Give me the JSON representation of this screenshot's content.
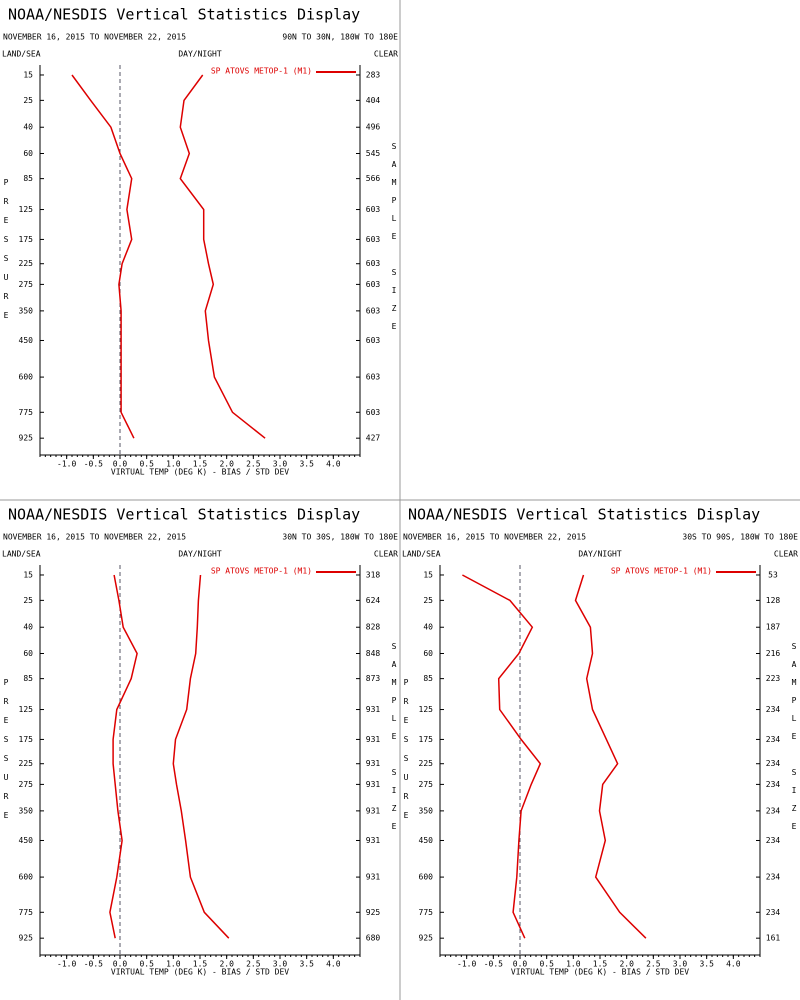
{
  "chart_data": [
    {
      "type": "line",
      "title": "NOAA/NESDIS Vertical Statistics Display",
      "subtitle": "NOVEMBER 16, 2015 TO NOVEMBER 22, 2015",
      "region": "90N TO 30N, 180W TO 180E",
      "land_sea": "LAND/SEA",
      "day_night": "DAY/NIGHT",
      "clear": "CLEAR",
      "legend": "SP ATOVS METOP-1 (M1)",
      "color": "#dd0000",
      "ylabel": "PRESSURE",
      "y2label": "SAMPLE SIZE",
      "xlabel": "VIRTUAL TEMP (DEG K) - BIAS / STD DEV",
      "y": [
        15,
        25,
        40,
        60,
        85,
        125,
        175,
        225,
        275,
        350,
        450,
        600,
        775,
        925
      ],
      "series": [
        {
          "values": [
            -0.9,
            -0.55,
            -0.17,
            0.0,
            0.22,
            0.13,
            0.22,
            0.04,
            -0.02,
            0.02,
            0.02,
            0.02,
            0.02,
            0.26
          ]
        },
        {
          "values": [
            1.55,
            1.2,
            1.13,
            1.3,
            1.13,
            1.57,
            1.57,
            1.66,
            1.75,
            1.6,
            1.66,
            1.77,
            2.11,
            2.72
          ]
        }
      ],
      "sample_sizes": [
        283,
        404,
        496,
        545,
        566,
        603,
        603,
        603,
        603,
        603,
        603,
        603,
        603,
        427
      ],
      "xlim": [
        -1.5,
        4.5
      ],
      "xticks": [
        {
          "value": -1.0,
          "label": "-1.0"
        },
        {
          "value": -0.5,
          "label": "-0.5"
        },
        {
          "value": 0.0,
          "label": "0.0"
        },
        {
          "value": 0.5,
          "label": "0.5"
        },
        {
          "value": 1.0,
          "label": "1.0"
        },
        {
          "value": 1.5,
          "label": "1.5"
        },
        {
          "value": 2.0,
          "label": "2.0"
        },
        {
          "value": 2.5,
          "label": "2.5"
        },
        {
          "value": 3.0,
          "label": "3.0"
        },
        {
          "value": 3.5,
          "label": "3.5"
        },
        {
          "value": 4.0,
          "label": "4.0"
        }
      ],
      "ylim": [
        12,
        1000
      ],
      "yscale": "power",
      "yexponent": 0.286,
      "yinverted": true,
      "yticks": [
        15,
        25,
        40,
        60,
        85,
        125,
        175,
        225,
        275,
        350,
        450,
        600,
        775,
        925
      ]
    },
    {
      "type": "line",
      "title": "NOAA/NESDIS Vertical Statistics Display",
      "subtitle": "NOVEMBER 16, 2015 TO NOVEMBER 22, 2015",
      "region": "30N TO 30S, 180W TO 180E",
      "land_sea": "LAND/SEA",
      "day_night": "DAY/NIGHT",
      "clear": "CLEAR",
      "legend": "SP ATOVS METOP-1 (M1)",
      "color": "#dd0000",
      "ylabel": "PRESSURE",
      "y2label": "SAMPLE SIZE",
      "xlabel": "VIRTUAL TEMP (DEG K) - BIAS / STD DEV",
      "y": [
        15,
        25,
        40,
        60,
        85,
        125,
        175,
        225,
        275,
        350,
        450,
        600,
        775,
        925
      ],
      "series": [
        {
          "values": [
            -0.11,
            -0.02,
            0.06,
            0.32,
            0.21,
            -0.06,
            -0.13,
            -0.13,
            -0.09,
            -0.04,
            0.04,
            -0.06,
            -0.19,
            -0.09
          ]
        },
        {
          "values": [
            1.51,
            1.47,
            1.45,
            1.42,
            1.32,
            1.25,
            1.04,
            1.0,
            1.06,
            1.15,
            1.23,
            1.32,
            1.58,
            2.04
          ]
        }
      ],
      "sample_sizes": [
        318,
        624,
        828,
        848,
        873,
        931,
        931,
        931,
        931,
        931,
        931,
        931,
        925,
        680
      ],
      "xlim": [
        -1.5,
        4.5
      ],
      "xticks": [
        {
          "value": -1.0,
          "label": "-1.0"
        },
        {
          "value": -0.5,
          "label": "-0.5"
        },
        {
          "value": 0.0,
          "label": "0.0"
        },
        {
          "value": 0.5,
          "label": "0.5"
        },
        {
          "value": 1.0,
          "label": "1.0"
        },
        {
          "value": 1.5,
          "label": "1.5"
        },
        {
          "value": 2.0,
          "label": "2.0"
        },
        {
          "value": 2.5,
          "label": "2.5"
        },
        {
          "value": 3.0,
          "label": "3.0"
        },
        {
          "value": 3.5,
          "label": "3.5"
        },
        {
          "value": 4.0,
          "label": "4.0"
        }
      ],
      "ylim": [
        12,
        1000
      ],
      "yscale": "power",
      "yexponent": 0.286,
      "yinverted": true,
      "yticks": [
        15,
        25,
        40,
        60,
        85,
        125,
        175,
        225,
        275,
        350,
        450,
        600,
        775,
        925
      ]
    },
    {
      "type": "line",
      "title": "NOAA/NESDIS Vertical Statistics Display",
      "subtitle": "NOVEMBER 16, 2015 TO NOVEMBER 22, 2015",
      "region": "30S TO 90S, 180W TO 180E",
      "land_sea": "LAND/SEA",
      "day_night": "DAY/NIGHT",
      "clear": "CLEAR",
      "legend": "SP ATOVS METOP-1 (M1)",
      "color": "#dd0000",
      "ylabel": "PRESSURE",
      "y2label": "SAMPLE SIZE",
      "xlabel": "VIRTUAL TEMP (DEG K) - BIAS / STD DEV",
      "y": [
        15,
        25,
        40,
        60,
        85,
        125,
        175,
        225,
        275,
        350,
        450,
        600,
        775,
        925
      ],
      "series": [
        {
          "values": [
            -1.08,
            -0.19,
            0.23,
            -0.02,
            -0.4,
            -0.38,
            0.02,
            0.38,
            0.21,
            0.02,
            -0.02,
            -0.06,
            -0.13,
            0.09
          ]
        },
        {
          "values": [
            1.19,
            1.04,
            1.32,
            1.36,
            1.25,
            1.36,
            1.62,
            1.83,
            1.55,
            1.49,
            1.6,
            1.42,
            1.87,
            2.36
          ]
        }
      ],
      "sample_sizes": [
        53,
        128,
        187,
        216,
        223,
        234,
        234,
        234,
        234,
        234,
        234,
        234,
        234,
        161
      ],
      "xlim": [
        -1.5,
        4.5
      ],
      "xticks": [
        {
          "value": -1.0,
          "label": "-1.0"
        },
        {
          "value": -0.5,
          "label": "-0.5"
        },
        {
          "value": 0.0,
          "label": "0.0"
        },
        {
          "value": 0.5,
          "label": "0.5"
        },
        {
          "value": 1.0,
          "label": "1.0"
        },
        {
          "value": 1.5,
          "label": "1.5"
        },
        {
          "value": 2.0,
          "label": "2.0"
        },
        {
          "value": 2.5,
          "label": "2.5"
        },
        {
          "value": 3.0,
          "label": "3.0"
        },
        {
          "value": 3.5,
          "label": "3.5"
        },
        {
          "value": 4.0,
          "label": "4.0"
        }
      ],
      "ylim": [
        12,
        1000
      ],
      "yscale": "power",
      "yexponent": 0.286,
      "yinverted": true,
      "yticks": [
        15,
        25,
        40,
        60,
        85,
        125,
        175,
        225,
        275,
        350,
        450,
        600,
        775,
        925
      ]
    }
  ]
}
